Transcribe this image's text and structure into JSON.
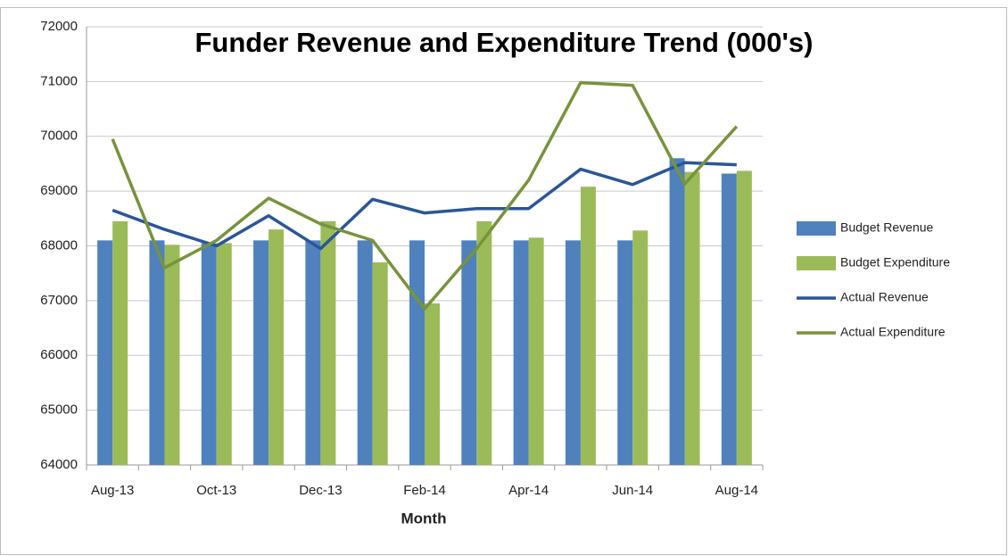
{
  "chart_data": {
    "type": "bar_line",
    "title": "Funder Revenue and Expenditure Trend (000's)",
    "x_label": "Month",
    "categories": [
      "Aug-13",
      null,
      "Oct-13",
      null,
      "Dec-13",
      null,
      "Feb-14",
      null,
      "Apr-14",
      null,
      "Jun-14",
      null,
      "Aug-14"
    ],
    "series": [
      {
        "name": "Budget Revenue",
        "kind": "bar",
        "color": "#4f81bd",
        "values": [
          68100,
          68100,
          68050,
          68100,
          68100,
          68100,
          68100,
          68100,
          68100,
          68100,
          68100,
          69600,
          69320
        ]
      },
      {
        "name": "Budget Expenditure",
        "kind": "bar",
        "color": "#9bbb59",
        "values": [
          68450,
          68020,
          68050,
          68300,
          68450,
          67700,
          66950,
          68450,
          68150,
          69080,
          68280,
          69350,
          69370
        ]
      },
      {
        "name": "Actual Revenue",
        "kind": "line",
        "color": "#2a5699",
        "values": [
          68650,
          68300,
          68000,
          68550,
          67950,
          68850,
          68600,
          68680,
          68680,
          69400,
          69120,
          69520,
          69480
        ]
      },
      {
        "name": "Actual Expenditure",
        "kind": "line",
        "color": "#77933c",
        "values": [
          69950,
          67600,
          68100,
          68870,
          68400,
          68100,
          66850,
          67950,
          69200,
          70980,
          70930,
          69130,
          70180
        ]
      }
    ],
    "ylim": [
      64000,
      72000
    ],
    "yticks": [
      64000,
      65000,
      66000,
      67000,
      68000,
      69000,
      70000,
      71000,
      72000
    ],
    "grid": true,
    "legend": "right"
  }
}
